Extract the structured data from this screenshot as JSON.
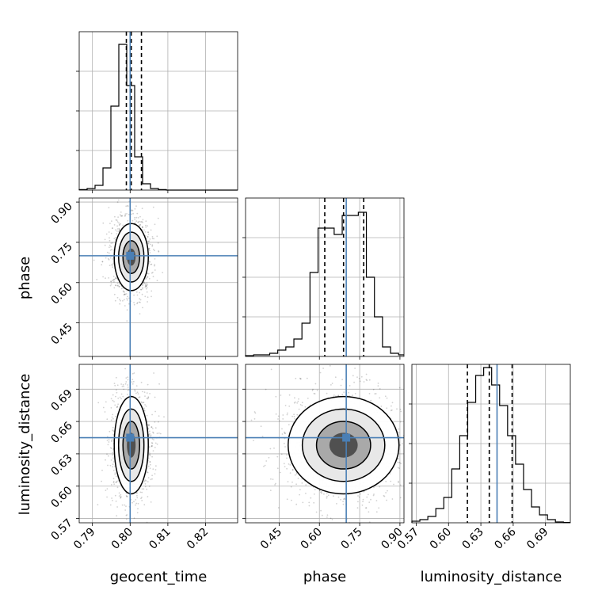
{
  "chart_data": {
    "type": "corner",
    "parameters": [
      "geocent_time",
      "phase",
      "luminosity_distance"
    ],
    "truths": {
      "geocent_time": 0.8,
      "phase": 0.7,
      "luminosity_distance": 0.645
    },
    "truth_color": "#4a7fb5",
    "marginals": [
      {
        "parameter": "geocent_time",
        "xlim": [
          0.7865,
          0.8285
        ],
        "quantiles": [
          0.799,
          0.8003,
          0.803
        ],
        "bins": {
          "edges": [
            0.7865,
            0.7886,
            0.7907,
            0.7928,
            0.7949,
            0.797,
            0.7991,
            0.8012,
            0.8033,
            0.8054,
            0.8075,
            0.8096,
            0.8285
          ],
          "heights": [
            0.003,
            0.01,
            0.03,
            0.14,
            0.53,
            0.92,
            0.66,
            0.21,
            0.04,
            0.01,
            0.003,
            0
          ]
        }
      },
      {
        "parameter": "phase",
        "xlim": [
          0.325,
          0.915
        ],
        "quantiles": [
          0.62,
          0.69,
          0.765
        ],
        "bins": {
          "edges": [
            0.325,
            0.355,
            0.385,
            0.415,
            0.445,
            0.475,
            0.505,
            0.535,
            0.565,
            0.595,
            0.625,
            0.655,
            0.685,
            0.715,
            0.745,
            0.775,
            0.805,
            0.835,
            0.865,
            0.895,
            0.915
          ],
          "heights": [
            0.005,
            0.01,
            0.01,
            0.02,
            0.04,
            0.06,
            0.11,
            0.21,
            0.53,
            0.81,
            0.81,
            0.77,
            0.89,
            0.89,
            0.91,
            0.5,
            0.25,
            0.06,
            0.02,
            0.01
          ]
        }
      },
      {
        "parameter": "luminosity_distance",
        "xlim": [
          0.566,
          0.713
        ],
        "quantiles": [
          0.6175,
          0.6378,
          0.659
        ],
        "bins": {
          "edges": [
            0.566,
            0.5734,
            0.5808,
            0.5882,
            0.5956,
            0.603,
            0.6104,
            0.6178,
            0.6252,
            0.6326,
            0.64,
            0.6474,
            0.6548,
            0.6622,
            0.6696,
            0.677,
            0.6844,
            0.6918,
            0.6992,
            0.7066,
            0.713
          ],
          "heights": [
            0.01,
            0.02,
            0.04,
            0.09,
            0.16,
            0.34,
            0.55,
            0.76,
            0.93,
            0.98,
            0.87,
            0.74,
            0.55,
            0.37,
            0.21,
            0.1,
            0.05,
            0.02,
            0.005,
            0.002
          ]
        }
      }
    ],
    "pairs": [
      {
        "x": "geocent_time",
        "y": "phase",
        "xlim": [
          0.7865,
          0.8285
        ],
        "ylim": [
          0.325,
          0.915
        ],
        "center": [
          0.8003,
          0.695
        ],
        "spread": [
          0.0021,
          0.058
        ]
      },
      {
        "x": "geocent_time",
        "y": "luminosity_distance",
        "xlim": [
          0.7865,
          0.8285
        ],
        "ylim": [
          0.566,
          0.713
        ],
        "center": [
          0.8003,
          0.638
        ],
        "spread": [
          0.0021,
          0.021
        ]
      },
      {
        "x": "phase",
        "y": "luminosity_distance",
        "xlim": [
          0.325,
          0.915
        ],
        "ylim": [
          0.566,
          0.713
        ],
        "center": [
          0.69,
          0.638
        ],
        "spread": [
          0.096,
          0.021
        ]
      }
    ],
    "ticks": {
      "geocent_time": [
        "0.79",
        "0.80",
        "0.81",
        "0.82"
      ],
      "phase": [
        "0.45",
        "0.60",
        "0.75",
        "0.90"
      ],
      "luminosity_distance": [
        "0.57",
        "0.60",
        "0.63",
        "0.66",
        "0.69"
      ]
    },
    "axis_labels": {
      "geocent_time": "geocent_time",
      "phase": "phase",
      "luminosity_distance": "luminosity_distance"
    },
    "grid": true
  }
}
